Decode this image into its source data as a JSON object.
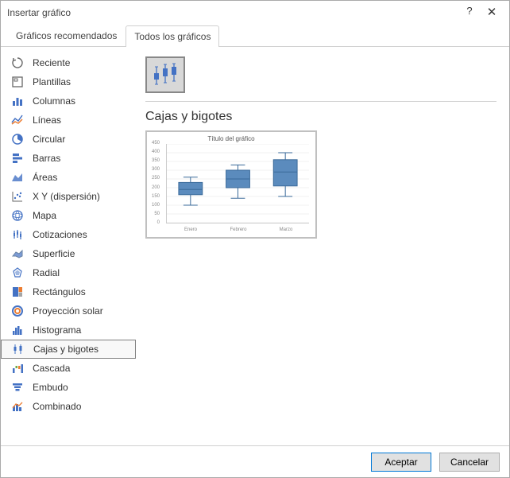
{
  "window": {
    "title": "Insertar gráfico"
  },
  "tabs": {
    "recommended": "Gráficos recomendados",
    "all": "Todos los gráficos",
    "active": "all"
  },
  "chartTypes": [
    {
      "id": "recent",
      "label": "Reciente"
    },
    {
      "id": "templates",
      "label": "Plantillas"
    },
    {
      "id": "column",
      "label": "Columnas"
    },
    {
      "id": "line",
      "label": "Líneas"
    },
    {
      "id": "pie",
      "label": "Circular"
    },
    {
      "id": "bar",
      "label": "Barras"
    },
    {
      "id": "area",
      "label": "Áreas"
    },
    {
      "id": "scatter",
      "label": "X Y (dispersión)"
    },
    {
      "id": "map",
      "label": "Mapa"
    },
    {
      "id": "stock",
      "label": "Cotizaciones"
    },
    {
      "id": "surface",
      "label": "Superficie"
    },
    {
      "id": "radar",
      "label": "Radial"
    },
    {
      "id": "treemap",
      "label": "Rectángulos"
    },
    {
      "id": "sunburst",
      "label": "Proyección solar"
    },
    {
      "id": "histogram",
      "label": "Histograma"
    },
    {
      "id": "boxwhisker",
      "label": "Cajas y bigotes"
    },
    {
      "id": "waterfall",
      "label": "Cascada"
    },
    {
      "id": "funnel",
      "label": "Embudo"
    },
    {
      "id": "combo",
      "label": "Combinado"
    }
  ],
  "selectedType": "boxwhisker",
  "rightPanel": {
    "title": "Cajas y bigotes",
    "preview": {
      "chartTitle": "Título del gráfico",
      "type": "boxplot",
      "yAxis": {
        "min": 0,
        "max": 450,
        "tickStep": 50,
        "ticks": [
          0,
          50,
          100,
          150,
          200,
          250,
          300,
          350,
          400,
          450
        ]
      },
      "categories": [
        "Enero",
        "Febrero",
        "Marzo"
      ],
      "series": [
        {
          "whiskerLow": 100,
          "q1": 160,
          "median": 190,
          "q3": 230,
          "whiskerHigh": 260
        },
        {
          "whiskerLow": 140,
          "q1": 200,
          "median": 250,
          "q3": 300,
          "whiskerHigh": 330
        },
        {
          "whiskerLow": 150,
          "q1": 210,
          "median": 290,
          "q3": 360,
          "whiskerHigh": 400
        }
      ],
      "colors": {
        "box": "#5b8bbd",
        "stroke": "#3a6a9a",
        "grid": "#e5e5e5",
        "bg": "#ffffff"
      },
      "boxWidthFrac": 0.5
    }
  },
  "footer": {
    "ok": "Aceptar",
    "cancel": "Cancelar"
  },
  "iconColor": "#4472c4"
}
